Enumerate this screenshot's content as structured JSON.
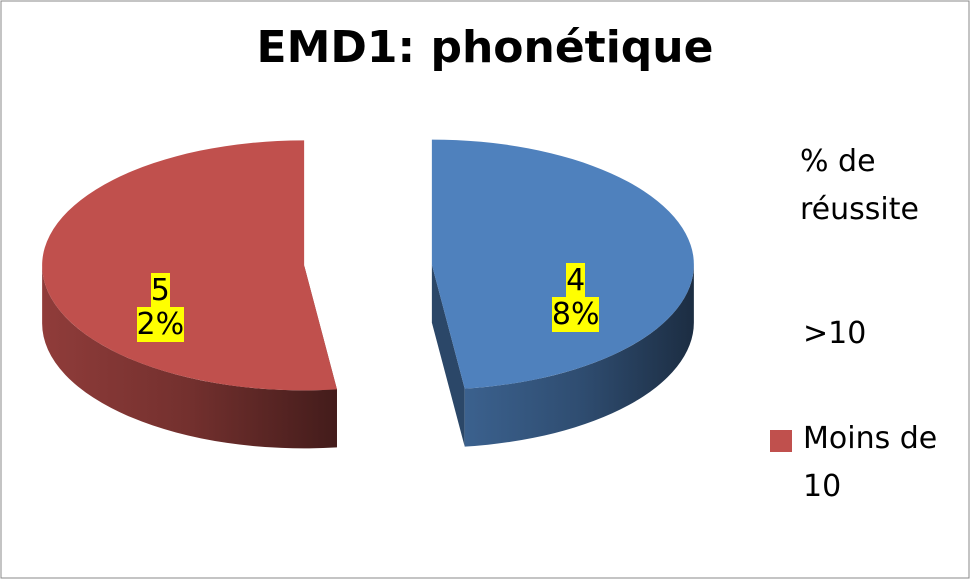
{
  "chart_data": {
    "type": "pie3d",
    "title": "EMD1: phonétique",
    "legend_title": "% de réussite",
    "categories": [
      ">10",
      "Moins de 10"
    ],
    "values": [
      48,
      52
    ],
    "value_labels": [
      "48%",
      "52%"
    ],
    "colors": [
      "#4f81bd",
      "#c0504d"
    ]
  }
}
